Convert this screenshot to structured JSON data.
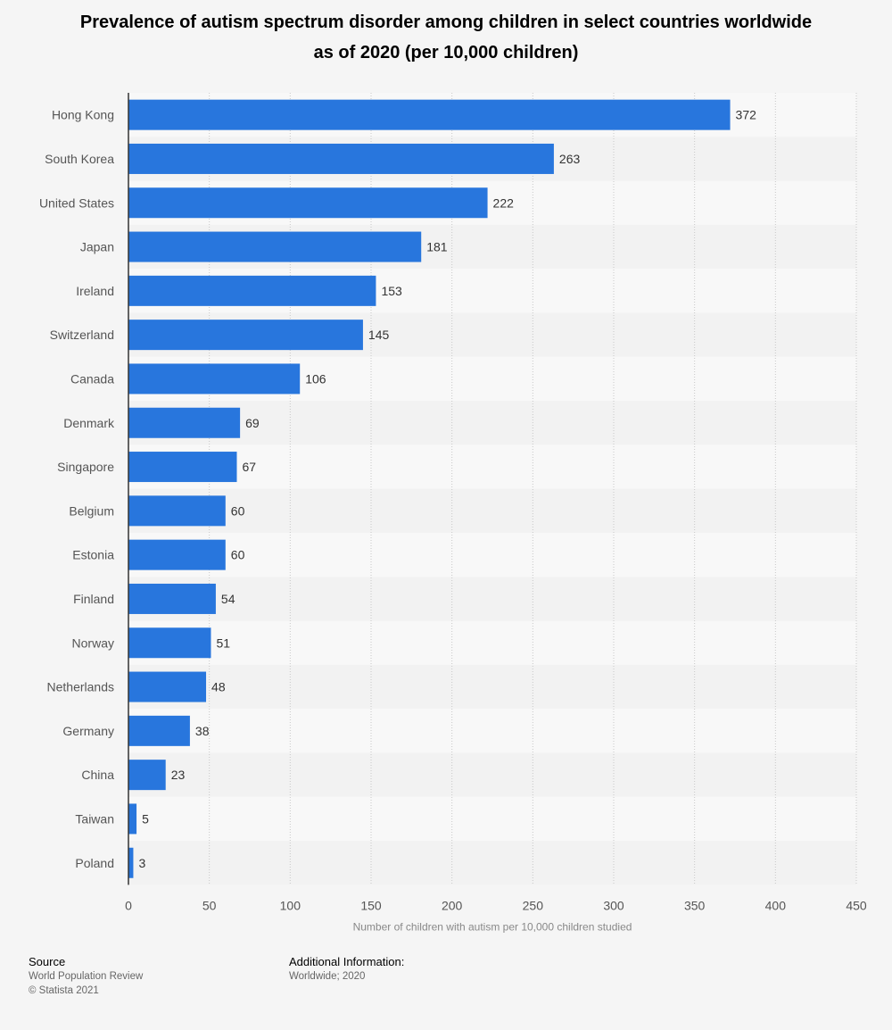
{
  "chart_data": {
    "type": "bar",
    "orientation": "horizontal",
    "title_line1": "Prevalence of autism spectrum disorder among children in select countries worldwide",
    "title_line2": "as of 2020 (per 10,000 children)",
    "xlabel": "Number of children with autism per 10,000 children studied",
    "ylabel": "",
    "xlim": [
      0,
      450
    ],
    "ticks": [
      "0",
      "50",
      "100",
      "150",
      "200",
      "250",
      "300",
      "350",
      "400",
      "450"
    ],
    "tick_values": [
      0,
      50,
      100,
      150,
      200,
      250,
      300,
      350,
      400,
      450
    ],
    "categories": [
      "Hong Kong",
      "South Korea",
      "United States",
      "Japan",
      "Ireland",
      "Switzerland",
      "Canada",
      "Denmark",
      "Singapore",
      "Belgium",
      "Estonia",
      "Finland",
      "Norway",
      "Netherlands",
      "Germany",
      "China",
      "Taiwan",
      "Poland"
    ],
    "values": [
      372,
      263,
      222,
      181,
      153,
      145,
      106,
      69,
      67,
      60,
      60,
      54,
      51,
      48,
      38,
      23,
      5,
      3
    ],
    "grid": true,
    "bar_color": "#2876dd"
  },
  "footer": {
    "source_heading": "Source",
    "source_text": "World Population Review",
    "copyright": "© Statista 2021",
    "info_heading": "Additional Information:",
    "info_text": "Worldwide; 2020"
  }
}
